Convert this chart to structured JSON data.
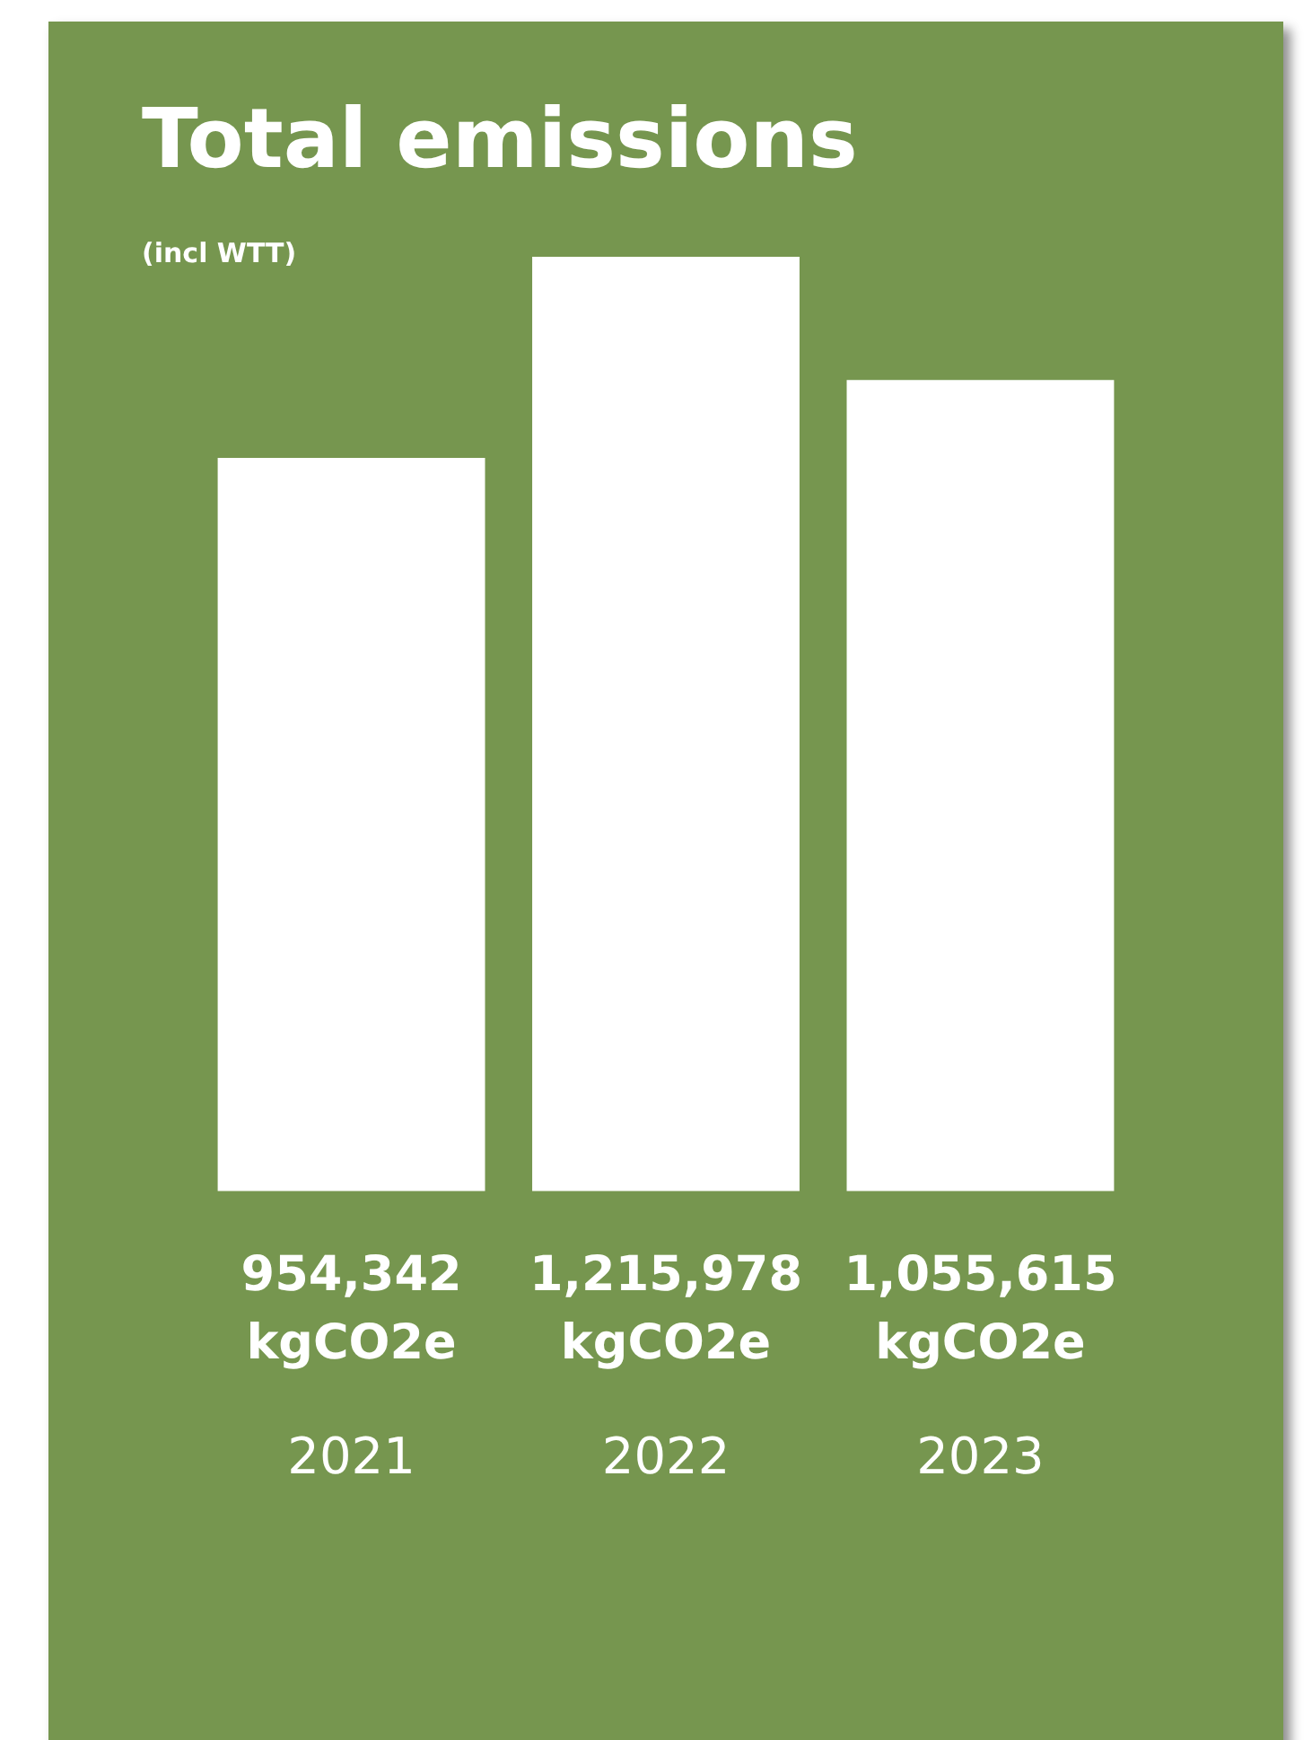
{
  "chart_data": {
    "type": "bar",
    "title": "Total emissions",
    "subtitle": "(incl WTT)",
    "categories": [
      "2021",
      "2022",
      "2023"
    ],
    "values": [
      954342,
      1215978,
      1055615
    ],
    "color": "#ffffff",
    "value_labels": [
      "954,342 kgCO2e",
      "1,215,978 kgCO2e",
      "1,055,615 kgCO2e"
    ],
    "grid": false,
    "legend": false
  }
}
